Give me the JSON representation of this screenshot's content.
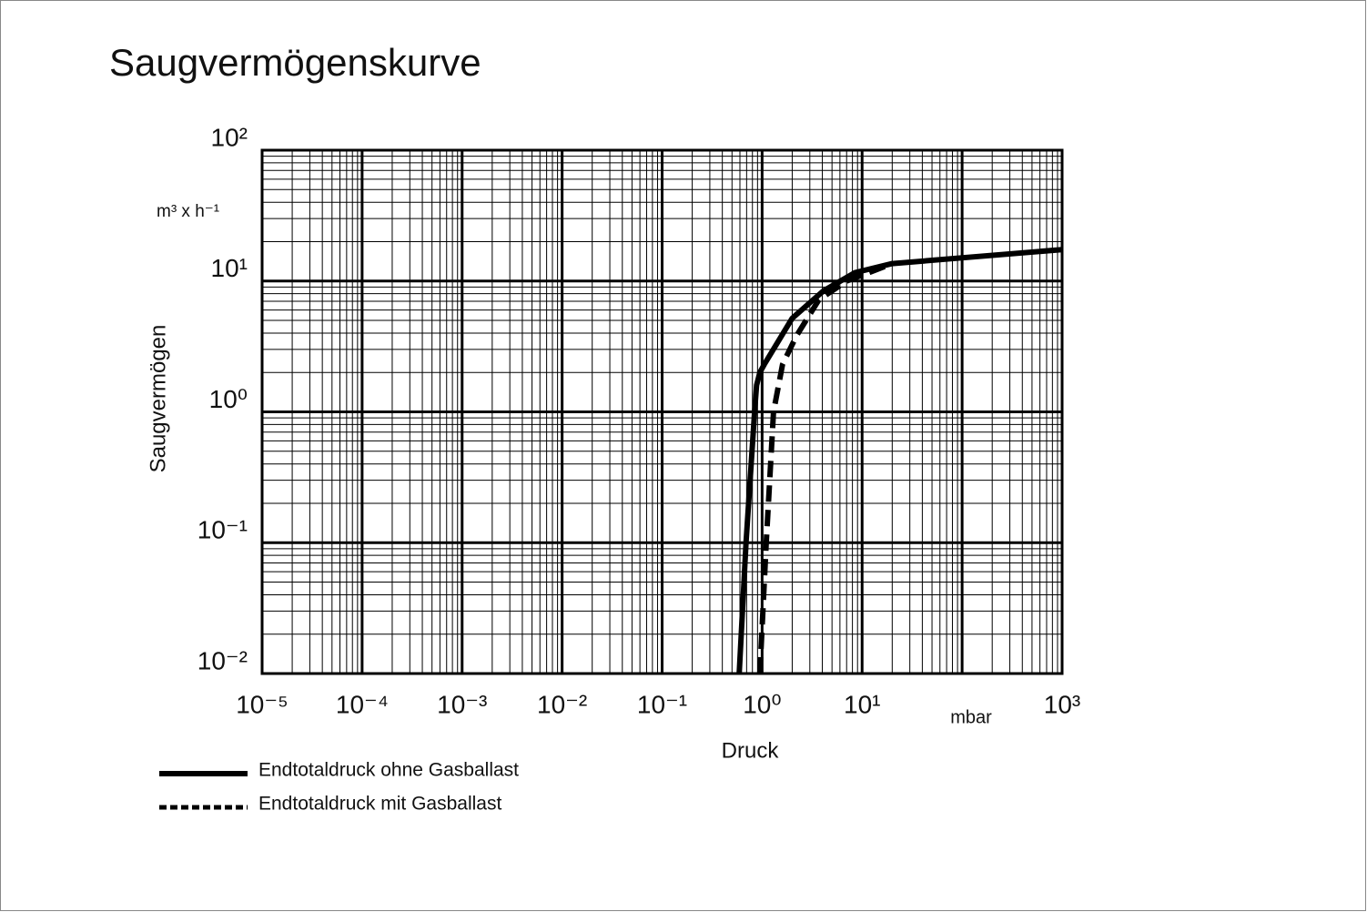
{
  "chart_data": {
    "type": "line",
    "title": "Saugvermögenskurve",
    "x_label": "Druck",
    "y_label": "Saugvermögen",
    "x_unit": "mbar",
    "y_unit": "m³ x h⁻¹",
    "log_x": true,
    "log_y": true,
    "grid": true,
    "minor_grid": true,
    "xlim": [
      1e-05,
      1000
    ],
    "ylim": [
      0.01,
      100
    ],
    "xticks": [
      {
        "value": 1e-05,
        "label": "10⁻⁵"
      },
      {
        "value": 0.0001,
        "label": "10⁻⁴"
      },
      {
        "value": 0.001,
        "label": "10⁻³"
      },
      {
        "value": 0.01,
        "label": "10⁻²"
      },
      {
        "value": 0.1,
        "label": "10⁻¹"
      },
      {
        "value": 1,
        "label": "10⁰"
      },
      {
        "value": 10,
        "label": "10¹"
      },
      {
        "value": 100,
        "label": null
      },
      {
        "value": 1000,
        "label": "10³"
      }
    ],
    "yticks": [
      {
        "value": 0.01,
        "label": "10⁻²"
      },
      {
        "value": 0.1,
        "label": "10⁻¹"
      },
      {
        "value": 1,
        "label": "10⁰"
      },
      {
        "value": 10,
        "label": "10¹"
      },
      {
        "value": 100,
        "label": "10²"
      }
    ],
    "legend": "bottom-left",
    "series": [
      {
        "name": "Endtotaldruck ohne Gasballast",
        "color": "#000000",
        "style": "solid",
        "x": [
          0.59,
          0.69,
          0.84,
          0.88,
          0.95,
          1.05,
          2,
          4.1,
          8.5,
          20,
          1000
        ],
        "values": [
          0.01,
          0.1,
          1,
          1.6,
          2,
          2.3,
          5.2,
          8.4,
          11.6,
          13.6,
          17.4
        ]
      },
      {
        "name": "Endtotaldruck mit Gasballast",
        "color": "#000000",
        "style": "dashed",
        "x": [
          0.95,
          1.1,
          1.3,
          1.6,
          2.2,
          3.7,
          7,
          11.7,
          20
        ],
        "values": [
          0.01,
          0.1,
          1,
          2.3,
          3.8,
          7.2,
          10,
          11.6,
          13.6
        ]
      }
    ]
  }
}
